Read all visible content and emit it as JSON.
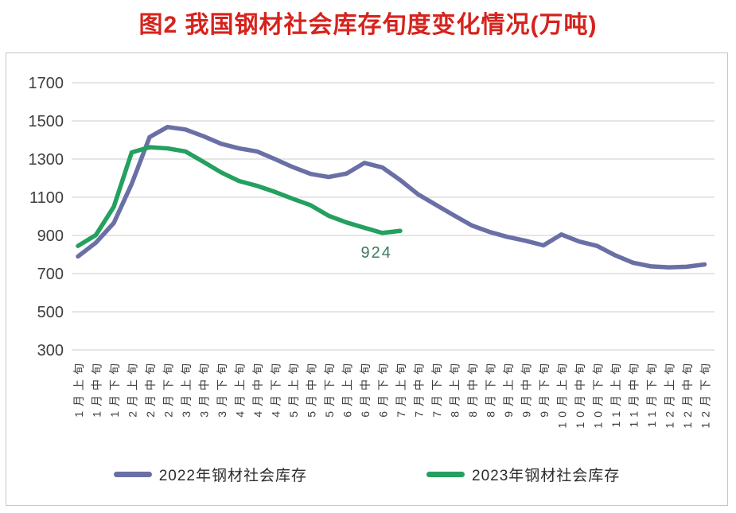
{
  "chart_data": {
    "type": "line",
    "title": "图2 我国钢材社会库存旬度变化情况(万吨)",
    "title_color": "#d6231d",
    "unit": "万吨",
    "categories": [
      "1月上旬",
      "1月中旬",
      "1月下旬",
      "2月上旬",
      "2月中旬",
      "2月下旬",
      "3月上旬",
      "3月中旬",
      "3月下旬",
      "4月上旬",
      "4月中旬",
      "4月下旬",
      "5月上旬",
      "5月中旬",
      "5月下旬",
      "6月上旬",
      "6月中旬",
      "6月下旬",
      "7月上旬",
      "7月中旬",
      "7月下旬",
      "8月上旬",
      "8月中旬",
      "8月下旬",
      "9月上旬",
      "9月中旬",
      "9月下旬",
      "10月上旬",
      "10月中旬",
      "10月下旬",
      "11月上旬",
      "11月中旬",
      "11月下旬",
      "12月上旬",
      "12月中旬",
      "12月下旬"
    ],
    "series": [
      {
        "name": "2022年钢材社会库存",
        "color": "#6a70a6",
        "values": [
          790,
          862,
          965,
          1170,
          1415,
          1468,
          1455,
          1420,
          1380,
          1356,
          1340,
          1300,
          1258,
          1222,
          1206,
          1224,
          1280,
          1256,
          1190,
          1115,
          1060,
          1005,
          952,
          918,
          892,
          872,
          848,
          905,
          868,
          845,
          796,
          757,
          738,
          733,
          736,
          748
        ]
      },
      {
        "name": "2023年钢材社会库存",
        "color": "#24a05f",
        "values": [
          845,
          902,
          1050,
          1335,
          1362,
          1356,
          1340,
          1286,
          1230,
          1185,
          1160,
          1128,
          1092,
          1058,
          1003,
          968,
          940,
          913,
          924
        ]
      }
    ],
    "ylim": [
      300,
      1700
    ],
    "yticks": [
      300,
      500,
      700,
      900,
      1100,
      1300,
      1500,
      1700
    ],
    "grid": true,
    "tick_label_color": "#3e3e3e",
    "gridline_color": "#d8d8d8",
    "x_tick_rotation": -90,
    "legend_position": "bottom",
    "annotation": {
      "text": "924",
      "value": 924,
      "series": "2023年钢材社会库存",
      "category": "7月上旬",
      "color": "#3e7a5e"
    }
  }
}
